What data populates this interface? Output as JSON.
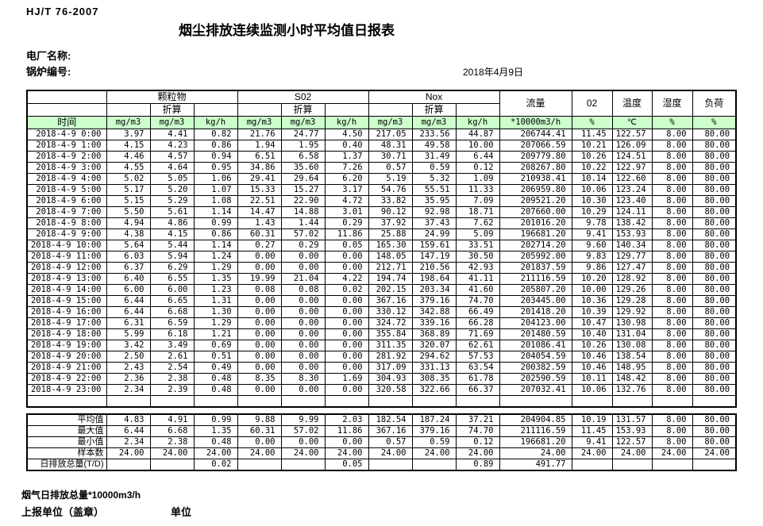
{
  "header": {
    "standard": "HJ/T 76-2007",
    "title": "烟尘排放连续监测小时平均值日报表",
    "plant_label": "电厂名称:",
    "boiler_label": "锅炉编号:",
    "date": "2018年4月9日"
  },
  "table": {
    "time_label": "时间",
    "converted_label": "折算",
    "groups": {
      "pm": "颗粒物",
      "so2": "S02",
      "nox": "Nox",
      "flow": "流量",
      "o2": "02",
      "temp": "温度",
      "humidity": "湿度",
      "load": "负荷"
    },
    "units": [
      "mg/m3",
      "mg/m3",
      "kg/h",
      "mg/m3",
      "mg/m3",
      "kg/h",
      "mg/m3",
      "mg/m3",
      "kg/h",
      "*10000m3/h",
      "%",
      "℃",
      "%",
      "%"
    ],
    "rows": [
      {
        "time": "2018-4-9 0:00",
        "values": [
          "3.97",
          "4.41",
          "0.82",
          "21.76",
          "24.77",
          "4.50",
          "217.05",
          "233.56",
          "44.87",
          "206744.41",
          "11.45",
          "122.57",
          "8.00",
          "80.00"
        ]
      },
      {
        "time": "2018-4-9 1:00",
        "values": [
          "4.15",
          "4.23",
          "0.86",
          "1.94",
          "1.95",
          "0.40",
          "48.31",
          "49.58",
          "10.00",
          "207066.59",
          "10.21",
          "126.09",
          "8.00",
          "80.00"
        ]
      },
      {
        "time": "2018-4-9 2:00",
        "values": [
          "4.46",
          "4.57",
          "0.94",
          "6.51",
          "6.58",
          "1.37",
          "30.71",
          "31.49",
          "6.44",
          "209779.80",
          "10.26",
          "124.51",
          "8.00",
          "80.00"
        ]
      },
      {
        "time": "2018-4-9 3:00",
        "values": [
          "4.55",
          "4.64",
          "0.95",
          "34.86",
          "35.60",
          "7.26",
          "0.57",
          "0.59",
          "0.12",
          "208267.80",
          "10.22",
          "122.97",
          "8.00",
          "80.00"
        ]
      },
      {
        "time": "2018-4-9 4:00",
        "values": [
          "5.02",
          "5.05",
          "1.06",
          "29.41",
          "29.64",
          "6.20",
          "5.19",
          "5.32",
          "1.09",
          "210938.41",
          "10.14",
          "122.60",
          "8.00",
          "80.00"
        ]
      },
      {
        "time": "2018-4-9 5:00",
        "values": [
          "5.17",
          "5.20",
          "1.07",
          "15.33",
          "15.27",
          "3.17",
          "54.76",
          "55.51",
          "11.33",
          "206959.80",
          "10.06",
          "123.24",
          "8.00",
          "80.00"
        ]
      },
      {
        "time": "2018-4-9 6:00",
        "values": [
          "5.15",
          "5.29",
          "1.08",
          "22.51",
          "22.90",
          "4.72",
          "33.82",
          "35.95",
          "7.09",
          "209521.20",
          "10.30",
          "123.40",
          "8.00",
          "80.00"
        ]
      },
      {
        "time": "2018-4-9 7:00",
        "values": [
          "5.50",
          "5.61",
          "1.14",
          "14.47",
          "14.88",
          "3.01",
          "90.12",
          "92.98",
          "18.71",
          "207660.00",
          "10.29",
          "124.11",
          "8.00",
          "80.00"
        ]
      },
      {
        "time": "2018-4-9 8:00",
        "values": [
          "4.94",
          "4.86",
          "0.99",
          "1.43",
          "1.44",
          "0.29",
          "37.92",
          "37.43",
          "7.62",
          "201016.20",
          "9.78",
          "138.42",
          "8.00",
          "80.00"
        ]
      },
      {
        "time": "2018-4-9 9:00",
        "values": [
          "4.38",
          "4.15",
          "0.86",
          "60.31",
          "57.02",
          "11.86",
          "25.88",
          "24.99",
          "5.09",
          "196681.20",
          "9.41",
          "153.93",
          "8.00",
          "80.00"
        ]
      },
      {
        "time": "2018-4-9 10:00",
        "values": [
          "5.64",
          "5.44",
          "1.14",
          "0.27",
          "0.29",
          "0.05",
          "165.30",
          "159.61",
          "33.51",
          "202714.20",
          "9.60",
          "140.34",
          "8.00",
          "80.00"
        ]
      },
      {
        "time": "2018-4-9 11:00",
        "values": [
          "6.03",
          "5.94",
          "1.24",
          "0.00",
          "0.00",
          "0.00",
          "148.05",
          "147.19",
          "30.50",
          "205992.00",
          "9.83",
          "129.77",
          "8.00",
          "80.00"
        ]
      },
      {
        "time": "2018-4-9 12:00",
        "values": [
          "6.37",
          "6.29",
          "1.29",
          "0.00",
          "0.00",
          "0.00",
          "212.71",
          "210.56",
          "42.93",
          "201837.59",
          "9.86",
          "127.47",
          "8.00",
          "80.00"
        ]
      },
      {
        "time": "2018-4-9 13:00",
        "values": [
          "6.40",
          "6.55",
          "1.35",
          "19.99",
          "21.04",
          "4.22",
          "194.74",
          "198.64",
          "41.11",
          "211116.59",
          "10.20",
          "128.92",
          "8.00",
          "80.00"
        ]
      },
      {
        "time": "2018-4-9 14:00",
        "values": [
          "6.00",
          "6.00",
          "1.23",
          "0.08",
          "0.08",
          "0.02",
          "202.15",
          "203.34",
          "41.60",
          "205807.20",
          "10.00",
          "129.26",
          "8.00",
          "80.00"
        ]
      },
      {
        "time": "2018-4-9 15:00",
        "values": [
          "6.44",
          "6.65",
          "1.31",
          "0.00",
          "0.00",
          "0.00",
          "367.16",
          "379.16",
          "74.70",
          "203445.00",
          "10.36",
          "129.28",
          "8.00",
          "80.00"
        ]
      },
      {
        "time": "2018-4-9 16:00",
        "values": [
          "6.44",
          "6.68",
          "1.30",
          "0.00",
          "0.00",
          "0.00",
          "330.12",
          "342.88",
          "66.49",
          "201418.20",
          "10.39",
          "129.92",
          "8.00",
          "80.00"
        ]
      },
      {
        "time": "2018-4-9 17:00",
        "values": [
          "6.31",
          "6.59",
          "1.29",
          "0.00",
          "0.00",
          "0.00",
          "324.72",
          "339.16",
          "66.28",
          "204123.00",
          "10.47",
          "130.98",
          "8.00",
          "80.00"
        ]
      },
      {
        "time": "2018-4-9 18:00",
        "values": [
          "5.99",
          "6.18",
          "1.21",
          "0.00",
          "0.00",
          "0.00",
          "355.84",
          "368.89",
          "71.69",
          "201480.59",
          "10.40",
          "131.04",
          "8.00",
          "80.00"
        ]
      },
      {
        "time": "2018-4-9 19:00",
        "values": [
          "3.42",
          "3.49",
          "0.69",
          "0.00",
          "0.00",
          "0.00",
          "311.35",
          "320.07",
          "62.61",
          "201086.41",
          "10.26",
          "130.08",
          "8.00",
          "80.00"
        ]
      },
      {
        "time": "2018-4-9 20:00",
        "values": [
          "2.50",
          "2.61",
          "0.51",
          "0.00",
          "0.00",
          "0.00",
          "281.92",
          "294.62",
          "57.53",
          "204054.59",
          "10.46",
          "138.54",
          "8.00",
          "80.00"
        ]
      },
      {
        "time": "2018-4-9 21:00",
        "values": [
          "2.43",
          "2.54",
          "0.49",
          "0.00",
          "0.00",
          "0.00",
          "317.09",
          "331.13",
          "63.54",
          "200382.59",
          "10.46",
          "148.95",
          "8.00",
          "80.00"
        ]
      },
      {
        "time": "2018-4-9 22:00",
        "values": [
          "2.36",
          "2.38",
          "0.48",
          "8.35",
          "8.30",
          "1.69",
          "304.93",
          "308.35",
          "61.78",
          "202590.59",
          "10.11",
          "148.42",
          "8.00",
          "80.00"
        ]
      },
      {
        "time": "2018-4-9 23:00",
        "values": [
          "2.34",
          "2.39",
          "0.48",
          "0.00",
          "0.00",
          "0.00",
          "320.58",
          "322.66",
          "66.37",
          "207032.41",
          "10.06",
          "132.76",
          "8.00",
          "80.00"
        ]
      }
    ],
    "summary": [
      {
        "label": "平均值",
        "values": [
          "4.83",
          "4.91",
          "0.99",
          "9.88",
          "9.99",
          "2.03",
          "182.54",
          "187.24",
          "37.21",
          "204904.85",
          "10.19",
          "131.57",
          "8.00",
          "80.00"
        ]
      },
      {
        "label": "最大值",
        "values": [
          "6.44",
          "6.68",
          "1.35",
          "60.31",
          "57.02",
          "11.86",
          "367.16",
          "379.16",
          "74.70",
          "211116.59",
          "11.45",
          "153.93",
          "8.00",
          "80.00"
        ]
      },
      {
        "label": "最小值",
        "values": [
          "2.34",
          "2.38",
          "0.48",
          "0.00",
          "0.00",
          "0.00",
          "0.57",
          "0.59",
          "0.12",
          "196681.20",
          "9.41",
          "122.57",
          "8.00",
          "80.00"
        ]
      },
      {
        "label": "样本数",
        "values": [
          "24.00",
          "24.00",
          "24.00",
          "24.00",
          "24.00",
          "24.00",
          "24.00",
          "24.00",
          "24.00",
          "24.00",
          "24.00",
          "24.00",
          "24.00",
          "24.00"
        ]
      },
      {
        "label": "日排放总量(T/D)",
        "values": [
          "",
          "",
          "0.02",
          "",
          "",
          "0.05",
          "",
          "",
          "0.89",
          "491.77",
          "",
          "",
          "",
          ""
        ]
      }
    ]
  },
  "footer": {
    "note": "烟气日排放总量*10000m3/h",
    "report_unit_label": "上报单位（盖章）",
    "unit_label": "单位"
  },
  "colors": {
    "header_green": "#ccffcc",
    "border": "#000000"
  }
}
